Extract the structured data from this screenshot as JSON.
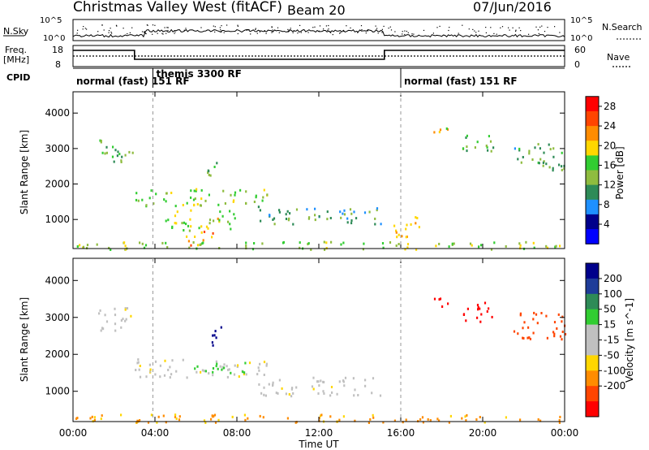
{
  "header": {
    "station": "Christmas Valley West (fitACF)",
    "beam": "Beam 20",
    "date": "07/Jun/2016"
  },
  "side_labels": {
    "nsky": "N.Sky",
    "freq_line1": "Freq.",
    "freq_line2": "[MHz]",
    "cpid": "CPID",
    "nsearch": "N.Search",
    "nave": "Nave"
  },
  "small_panels": {
    "noise_ticks": [
      "10^5",
      "10^0"
    ],
    "freq_ticks": [
      "18",
      "8"
    ],
    "nave_ticks": [
      "60",
      "0"
    ]
  },
  "cpid_labels": [
    {
      "text": "normal (fast) 151 RF",
      "start_hour": 0
    },
    {
      "text": "themis 3300 RF",
      "start_hour": 3.9
    },
    {
      "text": "normal (fast) 151 RF",
      "start_hour": 16
    }
  ],
  "colors": {
    "power": [
      "#0000ff",
      "#00008b",
      "#1e90ff",
      "#2e8b57",
      "#8fbc3f",
      "#32cd32",
      "#ffd700",
      "#ff8c00",
      "#ff4500",
      "#ff0000"
    ],
    "velocity": [
      "#00008b",
      "#1e3c99",
      "#2e8b57",
      "#32cd32",
      "#c0c0c0",
      "#c0c0c0",
      "#ffd700",
      "#ff8c00",
      "#ff4500",
      "#ff0000"
    ]
  },
  "chart_data": [
    {
      "type": "heatmap",
      "name": "power",
      "ylabel": "Slant Range [km]",
      "xlabel": "Time UT",
      "xlim": [
        0,
        24
      ],
      "ylim": [
        180,
        4600
      ],
      "y_ticks": [
        1000,
        2000,
        3000,
        4000
      ],
      "x_ticks": [
        "00:00",
        "04:00",
        "08:00",
        "12:00",
        "16:00",
        "20:00",
        "00:00"
      ],
      "colorbar_label": "Power [dB]",
      "colorbar_ticks": [
        4,
        8,
        12,
        16,
        20,
        24,
        28
      ],
      "colorbar_range": [
        0,
        30
      ],
      "features": [
        {
          "t0": 1.2,
          "t1": 2.9,
          "r0": 2600,
          "r1": 3300,
          "level": 14
        },
        {
          "t0": 3.0,
          "t1": 9.5,
          "r0": 1400,
          "r1": 1900,
          "level": 16
        },
        {
          "t0": 4.5,
          "t1": 8.0,
          "r0": 700,
          "r1": 1300,
          "level": 18
        },
        {
          "t0": 5.5,
          "t1": 6.8,
          "r0": 300,
          "r1": 700,
          "level": 24
        },
        {
          "t0": 6.5,
          "t1": 7.2,
          "r0": 2200,
          "r1": 2800,
          "level": 14
        },
        {
          "t0": 9.0,
          "t1": 15.0,
          "r0": 900,
          "r1": 1400,
          "level": 10
        },
        {
          "t0": 15.5,
          "t1": 17.0,
          "r0": 500,
          "r1": 1100,
          "level": 22
        },
        {
          "t0": 17.5,
          "t1": 18.5,
          "r0": 3300,
          "r1": 3600,
          "level": 20
        },
        {
          "t0": 19.0,
          "t1": 20.5,
          "r0": 2900,
          "r1": 3500,
          "level": 14
        },
        {
          "t0": 21.5,
          "t1": 24.0,
          "r0": 2400,
          "r1": 3200,
          "level": 12
        },
        {
          "t0": 0.0,
          "t1": 24.0,
          "r0": 180,
          "r1": 400,
          "level": 16
        }
      ]
    },
    {
      "type": "heatmap",
      "name": "velocity",
      "ylabel": "Slant Range [km]",
      "xlabel": "Time UT",
      "xlim": [
        0,
        24
      ],
      "ylim": [
        180,
        4600
      ],
      "y_ticks": [
        1000,
        2000,
        3000,
        4000
      ],
      "x_ticks": [
        "00:00",
        "04:00",
        "08:00",
        "12:00",
        "16:00",
        "20:00",
        "00:00"
      ],
      "colorbar_label": "Velocity [m s^-1]",
      "colorbar_ticks": [
        200,
        100,
        50,
        15,
        -15,
        -50,
        -100,
        -200
      ],
      "features": [
        {
          "t0": 1.2,
          "t1": 2.9,
          "r0": 2600,
          "r1": 3300,
          "level": 0
        },
        {
          "t0": 3.0,
          "t1": 9.5,
          "r0": 1400,
          "r1": 1900,
          "level": 0
        },
        {
          "t0": 5.5,
          "t1": 9.0,
          "r0": 1500,
          "r1": 1800,
          "level": 40
        },
        {
          "t0": 6.5,
          "t1": 7.2,
          "r0": 2200,
          "r1": 2800,
          "level": 200
        },
        {
          "t0": 9.0,
          "t1": 15.0,
          "r0": 900,
          "r1": 1400,
          "level": 0
        },
        {
          "t0": 17.5,
          "t1": 18.5,
          "r0": 3300,
          "r1": 3600,
          "level": -200
        },
        {
          "t0": 19.0,
          "t1": 20.5,
          "r0": 2900,
          "r1": 3500,
          "level": -200
        },
        {
          "t0": 21.5,
          "t1": 24.0,
          "r0": 2400,
          "r1": 3200,
          "level": -100
        },
        {
          "t0": 0.0,
          "t1": 24.0,
          "r0": 180,
          "r1": 400,
          "level": -40
        }
      ]
    }
  ],
  "axis": {
    "xlabel": "Time UT",
    "x_ticks": [
      "00:00",
      "04:00",
      "08:00",
      "12:00",
      "16:00",
      "20:00",
      "00:00"
    ]
  }
}
